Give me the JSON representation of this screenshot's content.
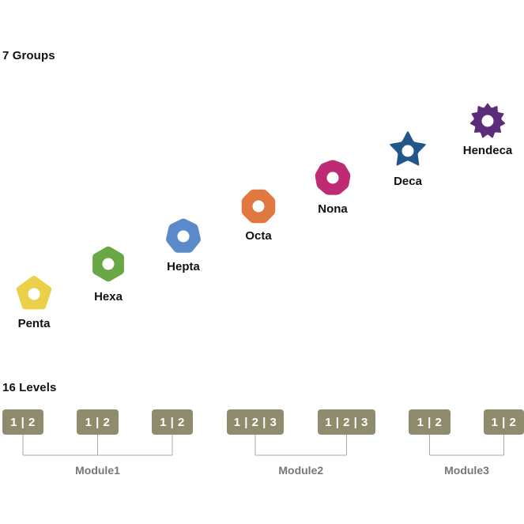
{
  "groups_section": {
    "title": "7 Groups",
    "groups": [
      {
        "name": "Penta",
        "sides": 5,
        "shape": "pentagon",
        "color": "#EBD04A"
      },
      {
        "name": "Hexa",
        "sides": 6,
        "shape": "hexagon",
        "color": "#69A844"
      },
      {
        "name": "Hepta",
        "sides": 7,
        "shape": "heptagon",
        "color": "#5B8ACB"
      },
      {
        "name": "Octa",
        "sides": 8,
        "shape": "octagon",
        "color": "#E07840"
      },
      {
        "name": "Nona",
        "sides": 9,
        "shape": "nonagon",
        "color": "#BE2B72"
      },
      {
        "name": "Deca",
        "sides": 10,
        "shape": "star",
        "color": "#22558A"
      },
      {
        "name": "Hendeca",
        "sides": 11,
        "shape": "starburst",
        "color": "#5C2C7A"
      }
    ]
  },
  "levels_section": {
    "title": "16 Levels",
    "box_color": "#8E8C6C",
    "line_color": "#AAAAAA",
    "boxes": [
      {
        "label": "1 | 2"
      },
      {
        "label": "1 | 2"
      },
      {
        "label": "1 | 2"
      },
      {
        "label": "1 | 2 | 3"
      },
      {
        "label": "1 | 2 | 3"
      },
      {
        "label": "1 | 2"
      },
      {
        "label": "1 | 2"
      }
    ],
    "modules": [
      {
        "label": "Module1"
      },
      {
        "label": "Module2"
      },
      {
        "label": "Module3"
      }
    ]
  }
}
